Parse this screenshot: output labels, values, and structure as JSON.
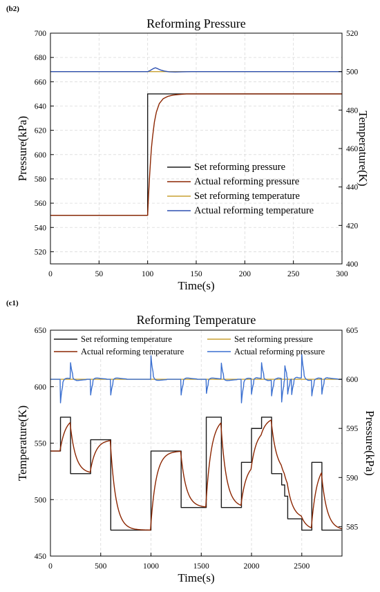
{
  "chart_data": [
    {
      "panel": "(b2)",
      "type": "line",
      "title": "Reforming Pressure",
      "xlabel": "Time(s)",
      "ylabel": "Pressure(kPa)",
      "y2label": "Temperature(K)",
      "xlim": [
        0,
        300
      ],
      "ylim": [
        510,
        700
      ],
      "y2lim": [
        400,
        520
      ],
      "xticks": [
        "0",
        "50",
        "100",
        "150",
        "200",
        "250",
        "300"
      ],
      "yticks": [
        "520",
        "540",
        "560",
        "580",
        "600",
        "620",
        "640",
        "660",
        "680",
        "700"
      ],
      "y2ticks": [
        "400",
        "420",
        "440",
        "460",
        "480",
        "500",
        "520"
      ],
      "grid": true,
      "legend_position": "lower-right",
      "series": [
        {
          "name": "Set reforming pressure",
          "axis": "left",
          "color": "#1a1a1a",
          "x": [
            0,
            100,
            100,
            300
          ],
          "y": [
            550,
            550,
            650,
            650
          ]
        },
        {
          "name": "Actual reforming pressure",
          "axis": "left",
          "color": "#8b2500",
          "x": [
            0,
            100,
            101,
            102,
            103,
            104,
            105,
            107,
            109,
            112,
            116,
            121,
            126,
            132,
            140,
            150,
            300
          ],
          "y": [
            550,
            550,
            567,
            582,
            595,
            606,
            614,
            627,
            635,
            642,
            646,
            648,
            649,
            649.5,
            650,
            650,
            650
          ]
        },
        {
          "name": "Set reforming  temperature",
          "axis": "right",
          "color": "#c8a030",
          "x": [
            0,
            300
          ],
          "y": [
            500,
            500
          ]
        },
        {
          "name": "Actual reforming temperature",
          "axis": "right",
          "color": "#2c4fb0",
          "x": [
            0,
            100,
            102,
            104,
            106,
            108,
            110,
            113,
            117,
            122,
            128,
            136,
            145,
            160,
            300
          ],
          "y": [
            500,
            500,
            500.4,
            501,
            501.6,
            502,
            501.6,
            500.9,
            500.3,
            499.9,
            499.8,
            499.9,
            500,
            500,
            500
          ]
        }
      ]
    },
    {
      "panel": "(c1)",
      "type": "line",
      "title": "Reforming Temperature",
      "xlabel": "Time(s)",
      "ylabel": "Temperature(K)",
      "y2label": "Pressure(kPa)",
      "xlim": [
        0,
        2900
      ],
      "ylim": [
        450,
        650
      ],
      "y2lim": [
        582,
        605
      ],
      "xticks": [
        "0",
        "500",
        "1000",
        "1500",
        "2000",
        "2500"
      ],
      "yticks": [
        "450",
        "500",
        "550",
        "600",
        "650"
      ],
      "y2ticks": [
        "585",
        "590",
        "595",
        "600",
        "605"
      ],
      "grid": true,
      "legend_position": "top",
      "setpoint_steps": {
        "t": [
          0,
          100,
          200,
          400,
          600,
          1000,
          1300,
          1550,
          1700,
          1900,
          2000,
          2100,
          2200,
          2300,
          2330,
          2360,
          2400,
          2500,
          2600,
          2700,
          2900
        ],
        "T": [
          543,
          573,
          523,
          553,
          473,
          543,
          493,
          573,
          493,
          533,
          563,
          573,
          523,
          513,
          503,
          483,
          483,
          473,
          533,
          473,
          473
        ]
      },
      "series": [
        {
          "name": "Set reforming  temperature",
          "axis": "left",
          "color": "#1a1a1a"
        },
        {
          "name": "Set reforming pressure",
          "axis": "right",
          "color": "#c8a030",
          "x": [
            0,
            2900
          ],
          "y": [
            600,
            600
          ]
        },
        {
          "name": "Actual reforming temperature",
          "axis": "left",
          "color": "#8b2500"
        },
        {
          "name": "Actual reforming pressure",
          "axis": "right",
          "color": "#3a6fd0"
        }
      ]
    }
  ]
}
